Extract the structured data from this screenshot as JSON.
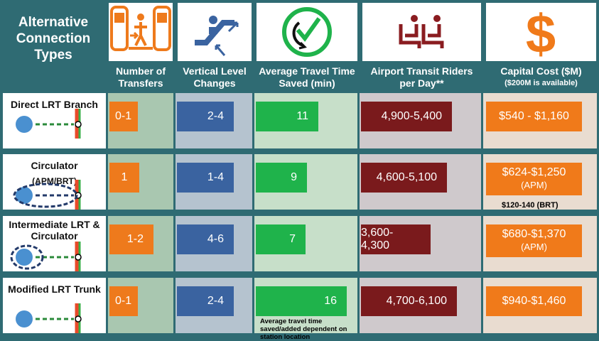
{
  "chart_data": {
    "type": "table",
    "title": "Alternative Connection Types",
    "columns": [
      {
        "key": "transfers",
        "label": "Number of Transfers",
        "icon": "transfer-icon"
      },
      {
        "key": "vertical",
        "label": "Vertical Level Changes",
        "icon": "escalator-icon"
      },
      {
        "key": "time",
        "label": "Average Travel Time Saved (min)",
        "icon": "clock-check-icon"
      },
      {
        "key": "riders",
        "label": "Airport Transit Riders per Day**",
        "icon": "seats-icon"
      },
      {
        "key": "cost",
        "label": "Capital Cost ($M)",
        "sublabel": "($200M is available)",
        "icon": "dollar-icon"
      }
    ],
    "rows": [
      {
        "name": "Direct LRT Branch",
        "sub": "",
        "transfers": "0-1",
        "vertical": "2-4",
        "time": "11",
        "riders": "4,900-5,400",
        "cost": "$540 - $1,160",
        "cost_sub": "",
        "transfers_value": 0.5,
        "vertical_value": 3,
        "time_value": 11,
        "riders_value": 5150
      },
      {
        "name": "Circulator",
        "sub": "(APM/BRT)",
        "transfers": "1",
        "vertical": "1-4",
        "time": "9",
        "riders": "4,600-5,100",
        "cost": "$624-$1,250",
        "cost_sub": "(APM)",
        "cost_extra": "$120-140 (BRT)",
        "transfers_value": 1,
        "vertical_value": 2.5,
        "time_value": 9,
        "riders_value": 4850
      },
      {
        "name": "Intermediate LRT & Circulator",
        "sub": "",
        "transfers": "1-2",
        "vertical": "4-6",
        "time": "7",
        "riders": "3,600-4,300",
        "cost": "$680-$1,370",
        "cost_sub": "(APM)",
        "transfers_value": 1.5,
        "vertical_value": 5,
        "time_value": 7,
        "riders_value": 3950
      },
      {
        "name": "Modified LRT Trunk",
        "sub": "",
        "transfers": "0-1",
        "vertical": "2-4",
        "time": "16",
        "riders": "4,700-6,100",
        "cost": "$940-$1,460",
        "cost_sub": "",
        "time_note": "Average travel time saved/added dependent on station location",
        "transfers_value": 0.5,
        "vertical_value": 3,
        "time_value": 16,
        "riders_value": 5400
      }
    ],
    "colors": {
      "transfers": "#ee7a1c",
      "vertical": "#3a63a0",
      "time": "#1fb34b",
      "riders": "#7a1a1c",
      "cost": "#f07a1a",
      "background": "#2f6b73"
    }
  }
}
